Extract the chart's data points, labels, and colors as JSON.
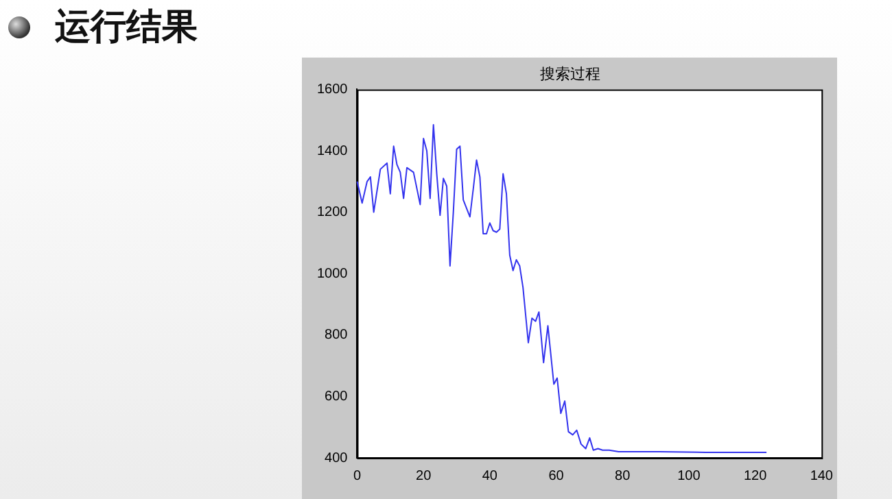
{
  "chart_data": {
    "type": "line",
    "title": "运行结果",
    "subtitle": "搜索过程",
    "x": [
      0,
      1.5,
      3,
      4,
      5,
      6,
      7,
      9,
      10,
      11,
      12,
      13,
      14,
      15,
      17,
      19,
      20,
      21,
      22,
      23,
      24,
      25,
      26,
      27,
      28,
      29,
      30,
      31,
      32,
      34,
      35,
      36,
      37,
      38,
      39,
      40,
      41,
      42,
      43,
      44,
      45,
      46,
      47,
      48,
      49,
      50,
      51.6,
      52.7,
      53.8,
      54.8,
      56.2,
      57.5,
      59.3,
      60.3,
      61.4,
      62.6,
      63.7,
      65,
      66.2,
      67.5,
      68.9,
      70.1,
      71.2,
      72.6,
      74,
      76,
      78.8,
      84,
      91,
      105,
      123.4
    ],
    "series": [
      {
        "color": "#3333ee",
        "values": [
          1300,
          1230,
          1300,
          1315,
          1200,
          1270,
          1340,
          1360,
          1260,
          1415,
          1355,
          1330,
          1245,
          1345,
          1330,
          1225,
          1440,
          1400,
          1245,
          1485,
          1325,
          1190,
          1310,
          1285,
          1025,
          1200,
          1405,
          1415,
          1240,
          1185,
          1275,
          1370,
          1315,
          1130,
          1130,
          1165,
          1140,
          1135,
          1145,
          1325,
          1260,
          1060,
          1010,
          1045,
          1025,
          955,
          775,
          855,
          845,
          875,
          710,
          830,
          640,
          660,
          545,
          585,
          485,
          475,
          490,
          445,
          430,
          465,
          425,
          430,
          425,
          425,
          420,
          420,
          420,
          418,
          418
        ]
      }
    ],
    "xlim": [
      0,
      140
    ],
    "xticks": [
      0,
      20,
      40,
      60,
      80,
      100,
      120,
      140
    ],
    "ylim": [
      400,
      1600
    ],
    "yticks": [
      400,
      600,
      800,
      1000,
      1200,
      1400,
      1600
    ],
    "grid": false,
    "legend": false,
    "marker": "none",
    "line_style": "solid"
  }
}
